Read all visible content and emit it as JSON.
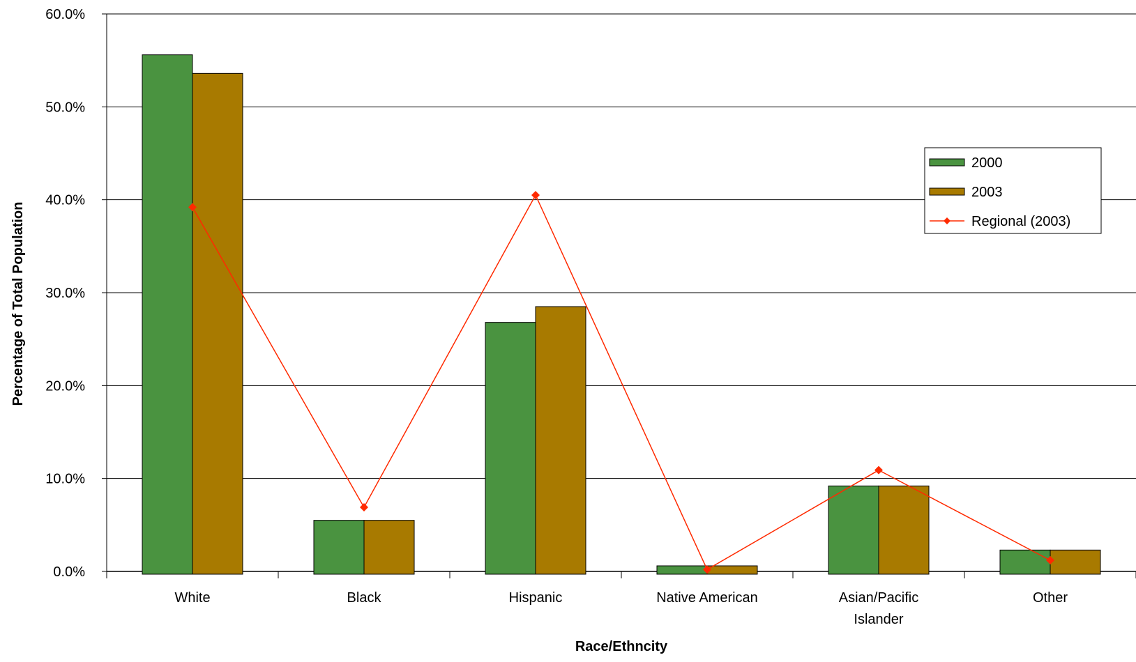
{
  "chart_data": {
    "type": "bar",
    "title": "",
    "xlabel": "Race/Ethncity",
    "ylabel": "Percentage of Total Population",
    "ylim": [
      0,
      60
    ],
    "yticks": [
      "0.0%",
      "10.0%",
      "20.0%",
      "30.0%",
      "40.0%",
      "50.0%",
      "60.0%"
    ],
    "grid": true,
    "legend_position": "right",
    "categories": [
      [
        "White"
      ],
      [
        "Black"
      ],
      [
        "Hispanic"
      ],
      [
        "Native American"
      ],
      [
        "Asian/Pacific",
        "Islander"
      ],
      [
        "Other"
      ]
    ],
    "series": [
      {
        "name": "2000",
        "type": "bar",
        "color": "#4a9340",
        "values": [
          55.6,
          5.5,
          26.8,
          0.6,
          9.2,
          2.3
        ]
      },
      {
        "name": "2003",
        "type": "bar",
        "color": "#a87a00",
        "values": [
          53.6,
          5.5,
          28.5,
          0.6,
          9.2,
          2.3
        ]
      },
      {
        "name": "Regional (2003)",
        "type": "line",
        "color": "#ff2a00",
        "values": [
          39.2,
          6.9,
          40.5,
          0.2,
          10.9,
          1.2
        ]
      }
    ]
  }
}
